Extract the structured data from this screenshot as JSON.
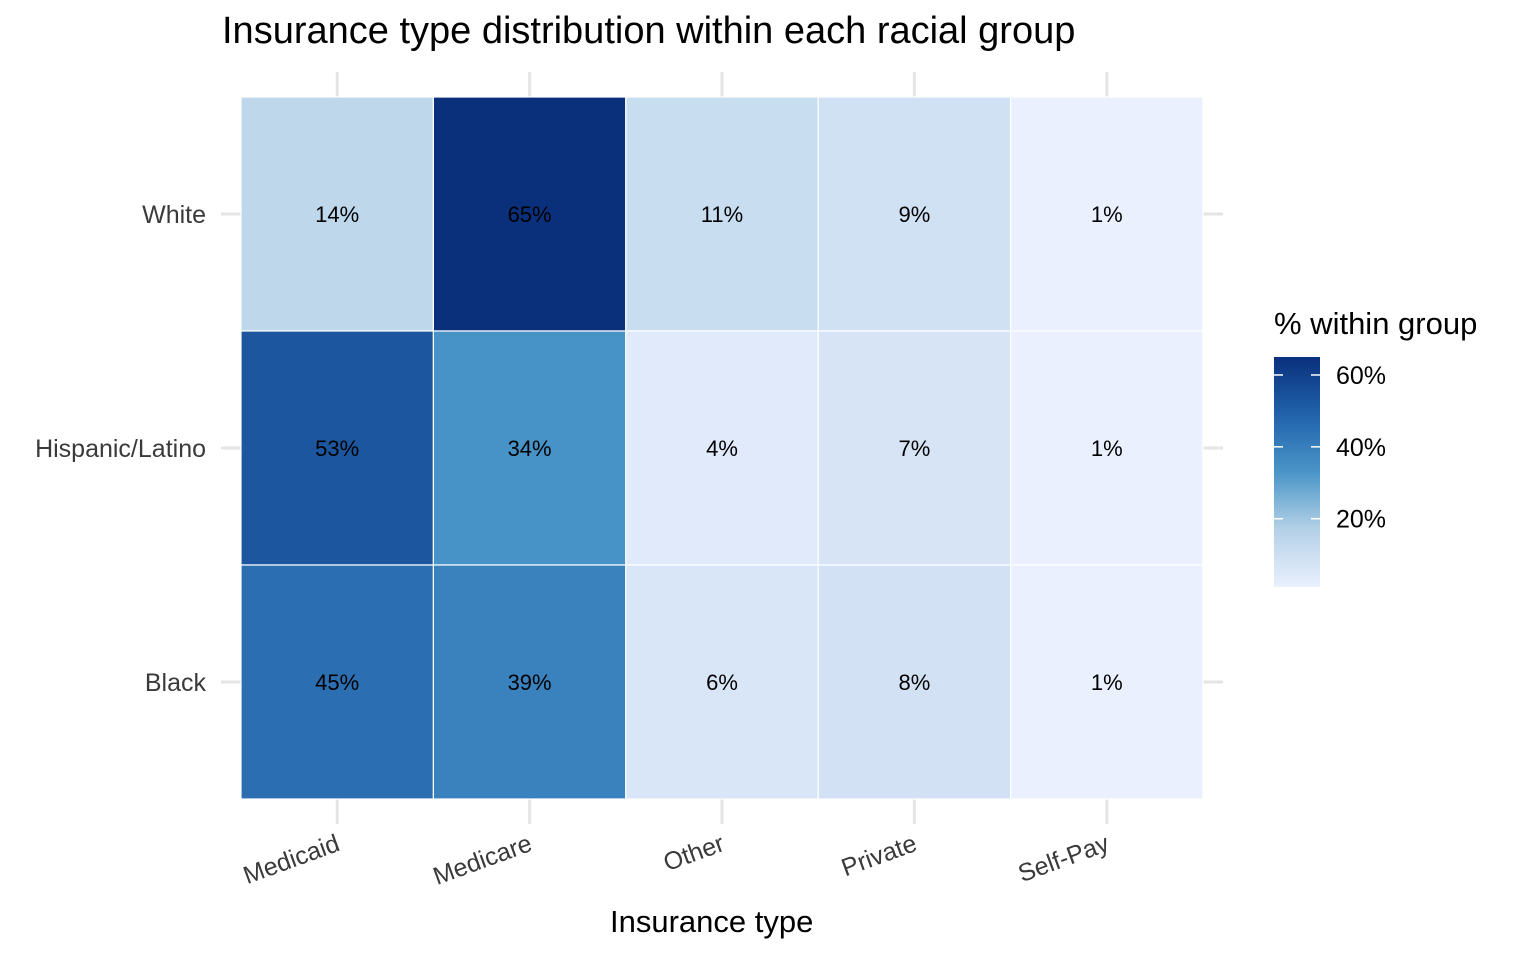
{
  "chart_data": {
    "type": "heatmap",
    "title": "Insurance type distribution within each racial group",
    "xlabel": "Insurance type",
    "ylabel": "",
    "x_categories": [
      "Medicaid",
      "Medicare",
      "Other",
      "Private",
      "Self-Pay"
    ],
    "y_categories": [
      "White",
      "Hispanic/Latino",
      "Black"
    ],
    "values": [
      [
        14,
        65,
        11,
        9,
        1
      ],
      [
        53,
        34,
        4,
        7,
        1
      ],
      [
        45,
        39,
        6,
        8,
        1
      ]
    ],
    "cell_labels": [
      [
        "14%",
        "65%",
        "11%",
        "9%",
        "1%"
      ],
      [
        "53%",
        "34%",
        "4%",
        "7%",
        "1%"
      ],
      [
        "45%",
        "39%",
        "6%",
        "8%",
        "1%"
      ]
    ],
    "legend": {
      "title": "% within group",
      "placement": "right",
      "range": [
        1,
        65
      ],
      "ticks": [
        20,
        40,
        60
      ],
      "tick_labels": [
        "20%",
        "40%",
        "60%"
      ]
    },
    "colors": {
      "low": "#eaf0fe",
      "mid_light": "#b4d1e7",
      "mid": "#4a95c8",
      "mid_dark": "#2062ab",
      "high": "#0a307c",
      "gridline": "#e5e5e5",
      "cell_border": "#ffffff"
    }
  }
}
